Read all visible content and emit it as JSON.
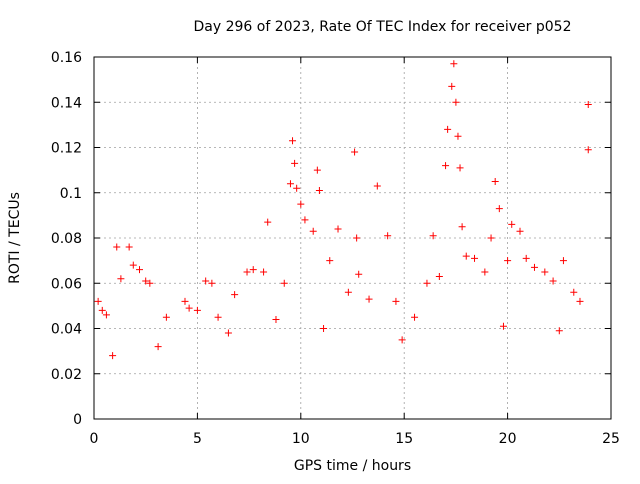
{
  "chart_data": {
    "type": "scatter",
    "title": "Day 296 of 2023, Rate Of TEC Index for receiver p052",
    "xlabel": "GPS time / hours",
    "ylabel": "ROTI / TECUs",
    "xlim": [
      0,
      25
    ],
    "ylim": [
      0,
      0.16
    ],
    "xticks": [
      0,
      5,
      10,
      15,
      20,
      25
    ],
    "xtick_labels": [
      "0",
      "5",
      "10",
      "15",
      "20",
      "25"
    ],
    "yticks": [
      0,
      0.02,
      0.04,
      0.06,
      0.08,
      0.1,
      0.12,
      0.14,
      0.16
    ],
    "ytick_labels": [
      "0",
      "0.02",
      "0.04",
      "0.06",
      "0.08",
      "0.1",
      "0.12",
      "0.14",
      "0.16"
    ],
    "grid": true,
    "marker": "+",
    "color": "#ff0000",
    "series": [
      {
        "points": [
          [
            0.2,
            0.052
          ],
          [
            0.4,
            0.048
          ],
          [
            0.6,
            0.046
          ],
          [
            1.1,
            0.076
          ],
          [
            1.3,
            0.062
          ],
          [
            1.7,
            0.076
          ],
          [
            1.9,
            0.068
          ],
          [
            2.2,
            0.066
          ],
          [
            2.5,
            0.061
          ],
          [
            2.7,
            0.06
          ],
          [
            3.5,
            0.045
          ],
          [
            4.4,
            0.052
          ],
          [
            4.6,
            0.049
          ],
          [
            5.0,
            0.048
          ],
          [
            5.4,
            0.061
          ],
          [
            5.7,
            0.06
          ],
          [
            6.0,
            0.045
          ],
          [
            6.8,
            0.055
          ],
          [
            7.4,
            0.065
          ],
          [
            7.7,
            0.066
          ],
          [
            8.2,
            0.065
          ],
          [
            8.4,
            0.087
          ],
          [
            9.2,
            0.06
          ],
          [
            9.5,
            0.104
          ],
          [
            9.6,
            0.123
          ],
          [
            9.7,
            0.113
          ],
          [
            9.8,
            0.102
          ],
          [
            10.0,
            0.095
          ],
          [
            10.2,
            0.088
          ],
          [
            10.6,
            0.083
          ],
          [
            10.8,
            0.11
          ],
          [
            10.9,
            0.101
          ],
          [
            11.4,
            0.07
          ],
          [
            11.8,
            0.084
          ],
          [
            12.3,
            0.056
          ],
          [
            12.6,
            0.118
          ],
          [
            12.7,
            0.08
          ],
          [
            12.8,
            0.064
          ],
          [
            13.3,
            0.053
          ],
          [
            13.7,
            0.103
          ],
          [
            14.2,
            0.081
          ],
          [
            14.6,
            0.052
          ],
          [
            15.5,
            0.045
          ],
          [
            16.1,
            0.06
          ],
          [
            16.4,
            0.081
          ],
          [
            16.7,
            0.063
          ],
          [
            17.0,
            0.112
          ],
          [
            17.1,
            0.128
          ],
          [
            17.3,
            0.147
          ],
          [
            17.4,
            0.157
          ],
          [
            17.5,
            0.14
          ],
          [
            17.6,
            0.125
          ],
          [
            17.7,
            0.111
          ],
          [
            17.8,
            0.085
          ],
          [
            18.0,
            0.072
          ],
          [
            18.4,
            0.071
          ],
          [
            18.9,
            0.065
          ],
          [
            19.2,
            0.08
          ],
          [
            19.4,
            0.105
          ],
          [
            19.6,
            0.093
          ],
          [
            20.0,
            0.07
          ],
          [
            20.2,
            0.086
          ],
          [
            20.6,
            0.083
          ],
          [
            20.9,
            0.071
          ],
          [
            21.3,
            0.067
          ],
          [
            21.8,
            0.065
          ],
          [
            22.2,
            0.061
          ],
          [
            22.7,
            0.07
          ],
          [
            23.2,
            0.056
          ],
          [
            23.5,
            0.052
          ],
          [
            23.9,
            0.139
          ],
          [
            23.9,
            0.119
          ],
          [
            3.1,
            0.032
          ],
          [
            6.5,
            0.038
          ],
          [
            11.1,
            0.04
          ],
          [
            14.9,
            0.035
          ],
          [
            19.8,
            0.041
          ],
          [
            22.5,
            0.039
          ],
          [
            0.9,
            0.028
          ],
          [
            8.8,
            0.044
          ]
        ]
      }
    ]
  }
}
